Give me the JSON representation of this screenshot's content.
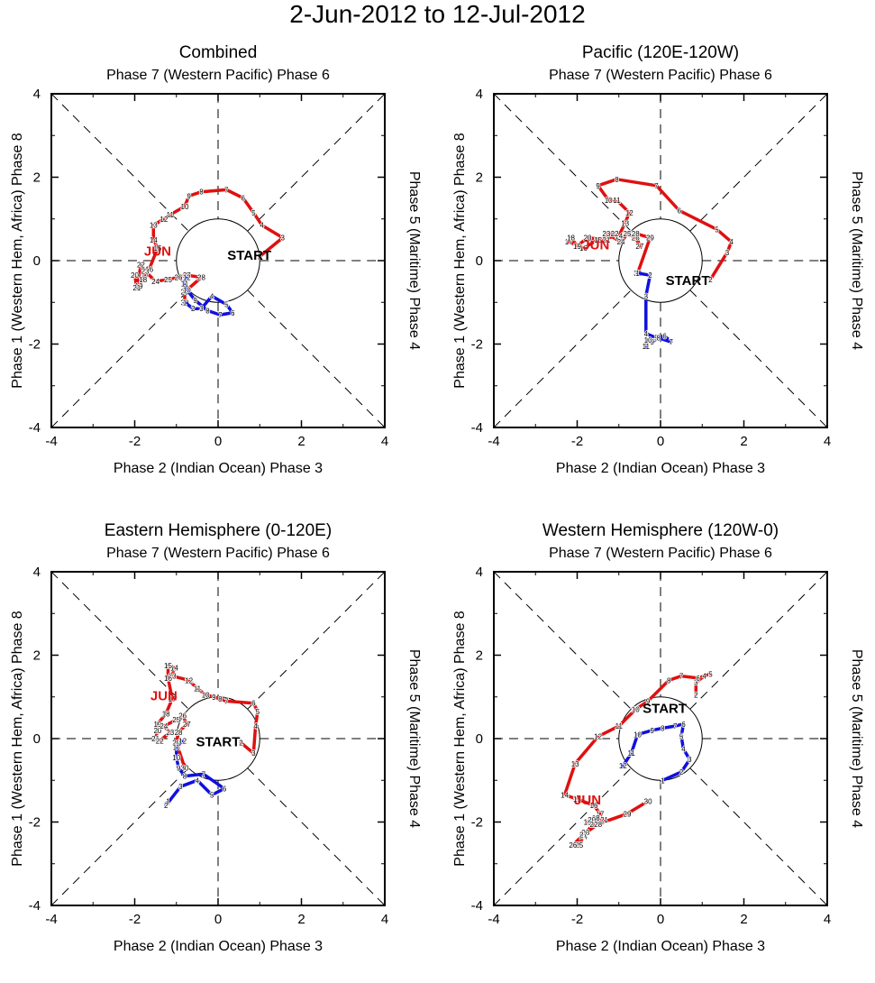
{
  "title": "2-Jun-2012 to 12-Jul-2012",
  "colors": {
    "june": "#e01010",
    "july": "#1010e0",
    "axis": "#000000",
    "guide": "#000000"
  },
  "labels": {
    "top": "Phase 7 (Western Pacific) Phase 6",
    "bottom": "Phase 2 (Indian Ocean) Phase 3",
    "left": "Phase 1 (Western Hem, Africa) Phase 8",
    "right": "Phase 5 (Maritime) Phase 4",
    "start": "START",
    "month": "JUN"
  },
  "chart_data": [
    {
      "type": "line",
      "title": "Combined",
      "xlim": [
        -4,
        4
      ],
      "ylim": [
        -4,
        4
      ],
      "xticks": [
        "-4",
        "-2",
        "0",
        "2",
        "4"
      ],
      "yticks": [
        "-4",
        "-2",
        "0",
        "2",
        "4"
      ],
      "start_label_at": [
        0.75,
        0.15
      ],
      "month_label_at": [
        -1.45,
        0.25
      ],
      "series": [
        {
          "name": "June",
          "color": "#e01010",
          "days": [
            "2",
            "3",
            "4",
            "5",
            "6",
            "7",
            "8",
            "9",
            "10",
            "11",
            "12",
            "13",
            "14",
            "15",
            "16",
            "17",
            "18",
            "19",
            "20",
            "21",
            "22",
            "23",
            "24",
            "25",
            "26",
            "27",
            "28",
            "29",
            "30"
          ],
          "points": [
            [
              1.0,
              0.1
            ],
            [
              1.55,
              0.55
            ],
            [
              1.05,
              0.85
            ],
            [
              0.85,
              1.15
            ],
            [
              0.6,
              1.5
            ],
            [
              0.2,
              1.7
            ],
            [
              -0.4,
              1.65
            ],
            [
              -0.7,
              1.55
            ],
            [
              -0.8,
              1.3
            ],
            [
              -1.15,
              1.1
            ],
            [
              -1.3,
              1.0
            ],
            [
              -1.55,
              0.85
            ],
            [
              -1.55,
              0.5
            ],
            [
              -1.45,
              0.3
            ],
            [
              -1.65,
              -0.2
            ],
            [
              -1.75,
              -0.35
            ],
            [
              -1.8,
              -0.45
            ],
            [
              -1.9,
              -0.6
            ],
            [
              -2.0,
              -0.35
            ],
            [
              -1.95,
              -0.65
            ],
            [
              -1.85,
              -0.1
            ],
            [
              -1.75,
              -0.25
            ],
            [
              -1.5,
              -0.5
            ],
            [
              -1.2,
              -0.45
            ],
            [
              -0.95,
              -0.4
            ],
            [
              -0.75,
              -0.35
            ],
            [
              -0.4,
              -0.4
            ],
            [
              -0.8,
              -0.75
            ],
            [
              -0.8,
              -1.0
            ]
          ]
        },
        {
          "name": "July",
          "color": "#1010e0",
          "days": [
            "1",
            "2",
            "3",
            "4",
            "5",
            "6",
            "7",
            "8",
            "9",
            "10",
            "11",
            "12"
          ],
          "points": [
            [
              -0.8,
              -1.0
            ],
            [
              -0.6,
              -1.15
            ],
            [
              -0.4,
              -1.15
            ],
            [
              -0.15,
              -0.85
            ],
            [
              0.2,
              -1.05
            ],
            [
              0.35,
              -1.25
            ],
            [
              0.05,
              -1.3
            ],
            [
              -0.25,
              -1.2
            ],
            [
              -0.55,
              -0.95
            ],
            [
              -0.75,
              -0.7
            ],
            [
              -0.8,
              -0.55
            ],
            [
              -0.75,
              -0.4
            ]
          ]
        }
      ]
    },
    {
      "type": "line",
      "title": "Pacific (120E-120W)",
      "xlim": [
        -4,
        4
      ],
      "ylim": [
        -4,
        4
      ],
      "xticks": [
        "-4",
        "-2",
        "0",
        "2",
        "4"
      ],
      "yticks": [
        "-4",
        "-2",
        "0",
        "2",
        "4"
      ],
      "start_label_at": [
        0.65,
        -0.45
      ],
      "month_label_at": [
        -1.55,
        0.4
      ],
      "series": [
        {
          "name": "June",
          "color": "#e01010",
          "days": [
            "2",
            "3",
            "4",
            "5",
            "6",
            "7",
            "8",
            "9",
            "10",
            "11",
            "12",
            "13",
            "14",
            "15",
            "16",
            "17",
            "18",
            "19",
            "20",
            "21",
            "22",
            "23",
            "24",
            "25",
            "26",
            "27",
            "28",
            "29",
            "30"
          ],
          "points": [
            [
              1.2,
              -0.45
            ],
            [
              1.6,
              0.2
            ],
            [
              1.7,
              0.45
            ],
            [
              1.35,
              0.75
            ],
            [
              0.45,
              1.2
            ],
            [
              -0.1,
              1.8
            ],
            [
              -1.05,
              1.95
            ],
            [
              -1.5,
              1.8
            ],
            [
              -1.25,
              1.45
            ],
            [
              -1.05,
              1.45
            ],
            [
              -0.75,
              1.15
            ],
            [
              -0.85,
              0.9
            ],
            [
              -1.0,
              0.6
            ],
            [
              -1.5,
              0.5
            ],
            [
              -1.85,
              0.3
            ],
            [
              -2.2,
              0.45
            ],
            [
              -2.15,
              0.55
            ],
            [
              -2.0,
              0.35
            ],
            [
              -1.75,
              0.55
            ],
            [
              -1.3,
              0.5
            ],
            [
              -1.1,
              0.65
            ],
            [
              -1.3,
              0.65
            ],
            [
              -0.95,
              0.45
            ],
            [
              -0.8,
              0.65
            ],
            [
              -0.6,
              0.55
            ],
            [
              -0.5,
              0.35
            ],
            [
              -0.6,
              0.65
            ],
            [
              -0.25,
              0.55
            ],
            [
              -0.55,
              -0.3
            ]
          ]
        },
        {
          "name": "July",
          "color": "#1010e0",
          "days": [
            "1",
            "2",
            "3",
            "4",
            "5",
            "6",
            "7",
            "8",
            "9",
            "10",
            "11"
          ],
          "points": [
            [
              -0.55,
              -0.3
            ],
            [
              -0.25,
              -0.35
            ],
            [
              -0.35,
              -0.85
            ],
            [
              -0.35,
              -1.75
            ],
            [
              -0.1,
              -1.85
            ],
            [
              0.1,
              -1.8
            ],
            [
              0.25,
              -1.95
            ],
            [
              -0.05,
              -1.85
            ],
            [
              -0.2,
              -1.95
            ],
            [
              -0.3,
              -1.9
            ],
            [
              -0.35,
              -2.05
            ]
          ]
        }
      ]
    },
    {
      "type": "line",
      "title": "Eastern Hemisphere (0-120E)",
      "xlim": [
        -4,
        4
      ],
      "ylim": [
        -4,
        4
      ],
      "xticks": [
        "-4",
        "-2",
        "0",
        "2",
        "4"
      ],
      "yticks": [
        "-4",
        "-2",
        "0",
        "2",
        "4"
      ],
      "start_label_at": [
        0.0,
        -0.05
      ],
      "month_label_at": [
        -1.3,
        1.05
      ],
      "series": [
        {
          "name": "June",
          "color": "#e01010",
          "days": [
            "2",
            "3",
            "4",
            "5",
            "6",
            "7",
            "8",
            "9",
            "10",
            "11",
            "12",
            "13",
            "14",
            "15",
            "16",
            "17",
            "18",
            "19",
            "20",
            "21",
            "22",
            "23",
            "24",
            "25",
            "26",
            "27",
            "28",
            "29",
            "30"
          ],
          "points": [
            [
              0.55,
              -0.1
            ],
            [
              0.85,
              -0.35
            ],
            [
              0.9,
              0.3
            ],
            [
              0.95,
              0.65
            ],
            [
              0.85,
              0.85
            ],
            [
              0.2,
              0.9
            ],
            [
              0.05,
              0.95
            ],
            [
              -0.1,
              1.0
            ],
            [
              -0.3,
              1.05
            ],
            [
              -0.5,
              1.2
            ],
            [
              -0.7,
              1.4
            ],
            [
              -1.1,
              1.5
            ],
            [
              -1.05,
              1.7
            ],
            [
              -1.2,
              1.75
            ],
            [
              -1.2,
              1.45
            ],
            [
              -1.1,
              0.95
            ],
            [
              -1.25,
              0.6
            ],
            [
              -1.45,
              0.35
            ],
            [
              -1.45,
              0.2
            ],
            [
              -1.5,
              0.0
            ],
            [
              -1.4,
              -0.05
            ],
            [
              -1.15,
              0.15
            ],
            [
              -1.3,
              0.3
            ],
            [
              -1.0,
              0.45
            ],
            [
              -0.85,
              0.55
            ],
            [
              -0.75,
              0.35
            ],
            [
              -0.95,
              0.15
            ],
            [
              -1.0,
              -0.1
            ],
            [
              -0.8,
              -0.7
            ]
          ]
        },
        {
          "name": "July",
          "color": "#1010e0",
          "days": [
            "1",
            "2",
            "3",
            "4",
            "5",
            "6",
            "7",
            "8",
            "9",
            "10",
            "11",
            "12"
          ],
          "points": [
            [
              -1.2,
              -1.5
            ],
            [
              -1.25,
              -1.6
            ],
            [
              -0.9,
              -1.15
            ],
            [
              -0.5,
              -1.0
            ],
            [
              -0.15,
              -1.35
            ],
            [
              0.15,
              -1.2
            ],
            [
              -0.35,
              -0.85
            ],
            [
              -0.8,
              -0.9
            ],
            [
              -0.95,
              -0.7
            ],
            [
              -1.0,
              -0.45
            ],
            [
              -1.0,
              -0.2
            ],
            [
              -0.85,
              -0.05
            ]
          ]
        }
      ]
    },
    {
      "type": "line",
      "title": "Western Hemisphere (120W-0)",
      "xlim": [
        -4,
        4
      ],
      "ylim": [
        -4,
        4
      ],
      "xticks": [
        "-4",
        "-2",
        "0",
        "2",
        "4"
      ],
      "yticks": [
        "-4",
        "-2",
        "0",
        "2",
        "4"
      ],
      "start_label_at": [
        0.1,
        0.75
      ],
      "month_label_at": [
        -1.75,
        -1.45
      ],
      "series": [
        {
          "name": "June",
          "color": "#e01010",
          "days": [
            "2",
            "3",
            "4",
            "5",
            "6",
            "7",
            "8",
            "9",
            "10",
            "11",
            "12",
            "13",
            "14",
            "15",
            "16",
            "17",
            "18",
            "19",
            "20",
            "21",
            "22",
            "23",
            "24",
            "25",
            "26",
            "27",
            "28",
            "29",
            "30"
          ],
          "points": [
            [
              0.85,
              1.05
            ],
            [
              0.85,
              1.35
            ],
            [
              1.05,
              1.5
            ],
            [
              1.2,
              1.55
            ],
            [
              0.9,
              1.45
            ],
            [
              0.5,
              1.5
            ],
            [
              0.2,
              1.4
            ],
            [
              -0.3,
              0.9
            ],
            [
              -0.6,
              0.7
            ],
            [
              -1.0,
              0.3
            ],
            [
              -1.5,
              0.05
            ],
            [
              -2.05,
              -0.6
            ],
            [
              -2.3,
              -1.35
            ],
            [
              -2.0,
              -1.45
            ],
            [
              -1.6,
              -1.6
            ],
            [
              -1.45,
              -1.8
            ],
            [
              -1.55,
              -1.9
            ],
            [
              -1.75,
              -2.0
            ],
            [
              -1.65,
              -1.95
            ],
            [
              -1.35,
              -1.95
            ],
            [
              -1.6,
              -2.05
            ],
            [
              -1.8,
              -2.25
            ],
            [
              -1.85,
              -2.35
            ],
            [
              -1.95,
              -2.55
            ],
            [
              -2.1,
              -2.55
            ],
            [
              -1.85,
              -2.3
            ],
            [
              -1.5,
              -2.05
            ],
            [
              -0.8,
              -1.8
            ],
            [
              -0.3,
              -1.5
            ]
          ]
        },
        {
          "name": "July",
          "color": "#1010e0",
          "days": [
            "1",
            "2",
            "3",
            "4",
            "5",
            "6",
            "7",
            "8",
            "9",
            "10",
            "11",
            "12"
          ],
          "points": [
            [
              0.05,
              -1.0
            ],
            [
              0.5,
              -0.8
            ],
            [
              0.7,
              -0.5
            ],
            [
              0.55,
              -0.25
            ],
            [
              0.5,
              0.05
            ],
            [
              0.55,
              0.35
            ],
            [
              0.35,
              0.3
            ],
            [
              0.05,
              0.25
            ],
            [
              -0.2,
              0.2
            ],
            [
              -0.55,
              0.1
            ],
            [
              -0.7,
              -0.35
            ],
            [
              -0.9,
              -0.65
            ]
          ]
        }
      ]
    }
  ]
}
